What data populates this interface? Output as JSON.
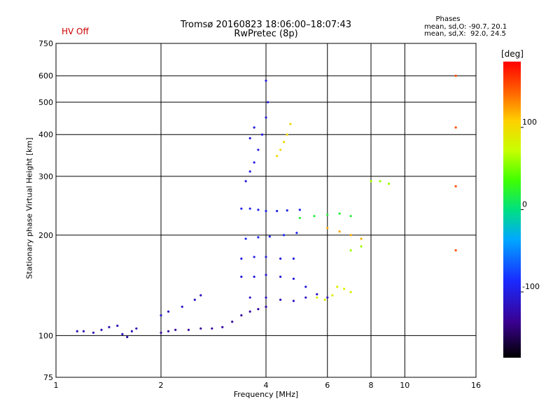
{
  "chart_data": {
    "type": "scatter",
    "title": "Tromsø 20160823 18:06:00–18:07:43",
    "subtitle": "RwPretec (8p)",
    "status": "HV Off",
    "status_color": "#cc0000",
    "stats": {
      "title": "Phases",
      "o_line": "mean, sd,O: -90.7, 20.1",
      "x_line": "mean, sd,X:  92.0, 24.5"
    },
    "xlabel": "Frequency [MHz]",
    "ylabel": "Stationary phase Virtual Height [km]",
    "x_scale": "log",
    "y_scale": "log",
    "xlim": [
      1,
      16
    ],
    "ylim": [
      75,
      750
    ],
    "x_ticks": [
      1,
      2,
      4,
      6,
      8,
      10,
      16
    ],
    "x_tick_labels": [
      "1",
      "2",
      "4",
      "6",
      "8",
      "10",
      "16"
    ],
    "y_ticks": [
      75,
      100,
      200,
      300,
      400,
      500,
      600,
      750
    ],
    "y_tick_labels": [
      "75",
      "100",
      "200",
      "300",
      "400",
      "500",
      "600",
      "750"
    ],
    "grid": true,
    "colorbar": {
      "label": "[deg]",
      "range": [
        -180,
        180
      ],
      "ticks": [
        100,
        0,
        -100
      ],
      "tick_labels": [
        "100",
        "0",
        "-100"
      ]
    },
    "series": [
      {
        "phase_deg": -120,
        "points": [
          [
            1.15,
            103
          ],
          [
            1.2,
            103
          ],
          [
            1.28,
            102
          ],
          [
            1.35,
            104
          ],
          [
            1.42,
            106
          ],
          [
            1.5,
            107
          ],
          [
            1.55,
            101
          ],
          [
            1.6,
            99
          ],
          [
            1.65,
            103
          ],
          [
            1.7,
            105
          ]
        ]
      },
      {
        "phase_deg": -130,
        "points": [
          [
            2.0,
            102
          ],
          [
            2.1,
            103
          ],
          [
            2.2,
            104
          ],
          [
            2.4,
            104
          ],
          [
            2.6,
            105
          ],
          [
            2.8,
            105
          ],
          [
            3.0,
            106
          ],
          [
            3.2,
            110
          ],
          [
            3.4,
            115
          ],
          [
            3.6,
            118
          ],
          [
            3.8,
            120
          ],
          [
            4.0,
            122
          ]
        ]
      },
      {
        "phase_deg": -110,
        "points": [
          [
            2.0,
            115
          ],
          [
            2.1,
            118
          ],
          [
            2.3,
            122
          ],
          [
            2.5,
            128
          ],
          [
            2.6,
            132
          ]
        ]
      },
      {
        "phase_deg": -100,
        "points": [
          [
            3.5,
            290
          ],
          [
            3.6,
            310
          ],
          [
            3.7,
            330
          ],
          [
            3.8,
            360
          ],
          [
            3.9,
            400
          ],
          [
            4.0,
            450
          ],
          [
            4.05,
            500
          ],
          [
            3.6,
            390
          ],
          [
            3.7,
            420
          ],
          [
            4.0,
            580
          ]
        ]
      },
      {
        "phase_deg": -95,
        "points": [
          [
            3.4,
            240
          ],
          [
            3.6,
            240
          ],
          [
            3.8,
            238
          ],
          [
            4.0,
            236
          ],
          [
            4.3,
            236
          ],
          [
            4.6,
            237
          ],
          [
            5.0,
            238
          ]
        ]
      },
      {
        "phase_deg": -90,
        "points": [
          [
            3.5,
            195
          ],
          [
            3.8,
            197
          ],
          [
            4.1,
            198
          ],
          [
            4.5,
            200
          ],
          [
            4.9,
            203
          ]
        ]
      },
      {
        "phase_deg": -100,
        "points": [
          [
            3.4,
            170
          ],
          [
            3.7,
            172
          ],
          [
            4.0,
            172
          ],
          [
            4.4,
            170
          ],
          [
            4.8,
            170
          ]
        ]
      },
      {
        "phase_deg": -105,
        "points": [
          [
            3.4,
            150
          ],
          [
            3.7,
            150
          ],
          [
            4.0,
            152
          ],
          [
            4.4,
            150
          ],
          [
            4.8,
            148
          ],
          [
            5.2,
            140
          ]
        ]
      },
      {
        "phase_deg": -115,
        "points": [
          [
            3.6,
            130
          ],
          [
            4.0,
            130
          ],
          [
            4.4,
            128
          ],
          [
            4.8,
            127
          ],
          [
            5.2,
            130
          ],
          [
            5.6,
            133
          ],
          [
            6.0,
            130
          ]
        ]
      },
      {
        "phase_deg": 100,
        "points": [
          [
            4.3,
            345
          ],
          [
            4.4,
            360
          ],
          [
            4.5,
            380
          ],
          [
            4.6,
            400
          ],
          [
            4.7,
            430
          ]
        ]
      },
      {
        "phase_deg": 85,
        "points": [
          [
            5.6,
            130
          ],
          [
            5.9,
            128
          ],
          [
            6.2,
            132
          ],
          [
            6.4,
            140
          ],
          [
            6.7,
            138
          ],
          [
            7.0,
            135
          ]
        ]
      },
      {
        "phase_deg": 20,
        "points": [
          [
            5.0,
            225
          ],
          [
            5.5,
            228
          ],
          [
            6.0,
            230
          ],
          [
            6.5,
            232
          ],
          [
            7.0,
            228
          ]
        ]
      },
      {
        "phase_deg": 120,
        "points": [
          [
            6.0,
            210
          ],
          [
            6.5,
            205
          ],
          [
            7.0,
            200
          ],
          [
            7.5,
            195
          ]
        ]
      },
      {
        "phase_deg": 60,
        "points": [
          [
            7.0,
            180
          ],
          [
            7.5,
            185
          ],
          [
            8.0,
            290
          ],
          [
            8.5,
            290
          ],
          [
            9.0,
            285
          ]
        ]
      },
      {
        "phase_deg": 150,
        "points": [
          [
            14.0,
            180
          ],
          [
            14.0,
            280
          ],
          [
            14.0,
            420
          ],
          [
            14.0,
            600
          ]
        ]
      }
    ]
  }
}
